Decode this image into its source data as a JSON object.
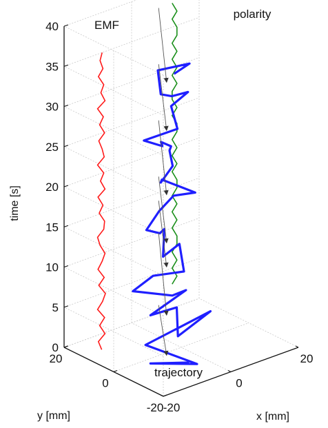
{
  "chart_data": {
    "type": "line",
    "projection": "3d",
    "zlabel": "time [s]",
    "xlabel": "x [mm]",
    "ylabel": "y [mm]",
    "zlim": [
      0,
      40
    ],
    "z_ticks": [
      0,
      5,
      10,
      15,
      20,
      25,
      30,
      35,
      40
    ],
    "z_tick_labels": [
      "0",
      "5",
      "10",
      "15",
      "20",
      "25",
      "30",
      "35",
      "40"
    ],
    "x_ticks": [
      -20,
      0,
      20
    ],
    "x_tick_labels": [
      "-20",
      "0",
      "20"
    ],
    "y_ticks": [
      -20,
      0,
      20
    ],
    "y_tick_labels": [
      "-20",
      "0",
      "20"
    ],
    "grid": true,
    "series": [
      {
        "name": "EMF",
        "color": "#ff1a1a",
        "z": [
          2,
          3,
          4,
          5,
          6,
          7,
          8,
          9,
          10,
          11,
          12,
          13,
          14,
          15,
          16,
          17,
          18,
          19,
          20,
          21,
          22,
          23,
          24,
          25,
          26,
          27,
          28,
          29,
          30,
          31,
          32,
          33,
          34,
          35,
          36,
          37,
          38,
          39
        ],
        "signal": [
          0.1,
          -0.7,
          0.9,
          -0.4,
          0.8,
          -0.9,
          0.3,
          1.0,
          -0.6,
          0.7,
          -0.8,
          0.2,
          0.9,
          -0.3,
          -0.9,
          0.6,
          0.8,
          -0.5,
          0.4,
          -0.8,
          0.9,
          -0.2,
          0.6,
          -0.9,
          0.7,
          0.2,
          -0.6,
          0.8,
          -0.4,
          0.5,
          -0.9,
          0.9,
          -0.1,
          0.6,
          -0.7,
          0.4,
          -0.3,
          0.2
        ]
      },
      {
        "name": "trajectory",
        "color": "#1f1fff",
        "z": [
          0.4,
          1.5,
          2.5,
          3.5,
          4.5,
          5.5,
          6.5,
          7.5,
          8.5,
          9.5,
          10.5,
          11.5,
          12.5,
          13.5,
          14.5,
          15.5,
          16.5,
          17.5,
          18.5,
          19.5,
          20.5,
          21.5,
          22.5,
          23.5,
          24.5,
          25.5,
          26.5,
          27.5,
          28.5,
          29.5,
          30.5,
          31.5,
          32.5,
          33.5,
          34.5,
          35.5,
          36.5
        ],
        "x": [
          -5,
          -15,
          -10,
          -15,
          5,
          -12,
          -5,
          -15,
          -3,
          -10,
          -18,
          -12,
          -8,
          -2,
          -12,
          -5,
          -10,
          -14,
          -8,
          -3,
          -1,
          -5,
          -9,
          -4,
          -2,
          -3,
          -6,
          -10,
          -14,
          -7,
          -3,
          2,
          -5,
          -9,
          -4,
          1,
          -8
        ],
        "y": [
          -10,
          -8,
          -20,
          -6,
          -5,
          -15,
          -5,
          -8,
          -6,
          -10,
          -5,
          -5,
          -12,
          -2,
          -9,
          0,
          -5,
          -5,
          -2,
          -1,
          -7,
          1,
          -4,
          -2,
          2,
          0,
          0,
          -6,
          -4,
          -8,
          0,
          0,
          -3,
          -4,
          4,
          -2,
          -8
        ]
      },
      {
        "name": "polarity",
        "color": "#1a8f1a",
        "z": [
          3,
          4,
          5,
          6,
          7,
          8,
          9,
          10,
          11,
          12,
          13,
          14,
          15,
          16,
          17,
          18,
          19,
          20,
          21,
          22,
          23,
          24,
          25,
          26,
          27,
          28,
          29,
          30,
          31,
          32,
          33,
          34,
          35,
          36,
          37,
          38
        ],
        "signal": [
          0,
          1,
          0,
          1,
          0,
          1,
          1,
          0,
          1,
          0,
          1,
          0,
          1,
          1,
          0,
          1,
          0,
          1,
          0,
          1,
          1,
          0,
          1,
          0,
          0,
          1,
          0,
          1,
          0,
          1,
          0,
          1,
          1,
          0,
          1,
          0
        ]
      }
    ],
    "annotations": [
      {
        "text": "EMF",
        "target": "EMF"
      },
      {
        "text": "polarity",
        "target": "polarity"
      },
      {
        "text": "trajectory",
        "target": "trajectory"
      }
    ],
    "arrows": [
      {
        "from_z": 38,
        "to_z": 35
      },
      {
        "from_z": 31,
        "to_z": 29
      },
      {
        "from_z": 24,
        "to_z": 21
      },
      {
        "from_z": 17,
        "to_z": 15
      },
      {
        "from_z": 14,
        "to_z": 12
      },
      {
        "from_z": 10,
        "to_z": 6
      },
      {
        "from_z": 1,
        "to_z": 1
      }
    ]
  }
}
